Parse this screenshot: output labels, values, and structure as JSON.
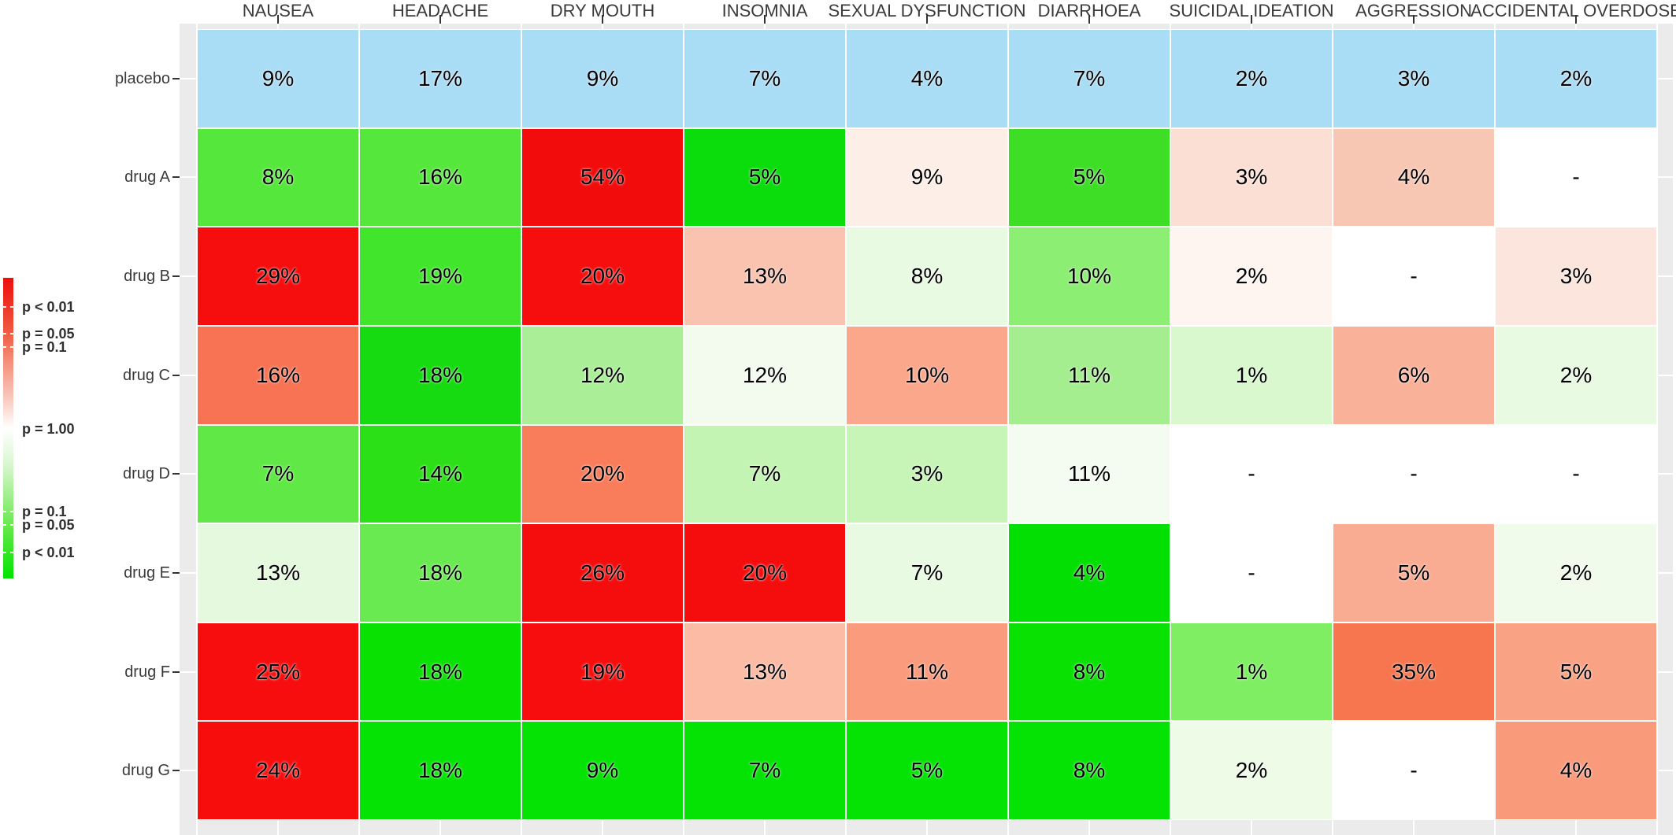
{
  "figure": {
    "background": "#FFFFFF",
    "panel_background": "#EBEBEB",
    "gridline_color": "#FFFFFF",
    "tick_color": "#333333",
    "label_color": "#3A3A3A",
    "value_color": "#000000",
    "placebo_row_color": "#A9DCF5"
  },
  "chart_data": {
    "type": "heatmap",
    "title": "",
    "xlabel": "",
    "ylabel": "",
    "grid": true,
    "legend_position": "left",
    "columns": [
      "NAUSEA",
      "HEADACHE",
      "DRY MOUTH",
      "INSOMNIA",
      "SEXUAL DYSFUNCTION",
      "DIARRHOEA",
      "SUICIDAL IDEATION",
      "AGGRESSION",
      "ACCIDENTAL OVERDOSE"
    ],
    "rows": [
      "placebo",
      "drug A",
      "drug B",
      "drug C",
      "drug D",
      "drug E",
      "drug F",
      "drug G"
    ],
    "cells": [
      [
        {
          "v": "9%",
          "c": "#A9DCF5"
        },
        {
          "v": "17%",
          "c": "#A9DCF5"
        },
        {
          "v": "9%",
          "c": "#A9DCF5"
        },
        {
          "v": "7%",
          "c": "#A9DCF5"
        },
        {
          "v": "4%",
          "c": "#A9DCF5"
        },
        {
          "v": "7%",
          "c": "#A9DCF5"
        },
        {
          "v": "2%",
          "c": "#A9DCF5"
        },
        {
          "v": "3%",
          "c": "#A9DCF5"
        },
        {
          "v": "2%",
          "c": "#A9DCF5"
        }
      ],
      [
        {
          "v": "8%",
          "c": "#55E73B"
        },
        {
          "v": "16%",
          "c": "#55E73B"
        },
        {
          "v": "54%",
          "c": "#F30C0C"
        },
        {
          "v": "5%",
          "c": "#0BDC0B"
        },
        {
          "v": "9%",
          "c": "#FDEFE8"
        },
        {
          "v": "5%",
          "c": "#3EDE27"
        },
        {
          "v": "3%",
          "c": "#FCDFD4"
        },
        {
          "v": "4%",
          "c": "#F8C7B3"
        },
        {
          "v": "-",
          "c": "#FFFFFF"
        }
      ],
      [
        {
          "v": "29%",
          "c": "#F60D0D"
        },
        {
          "v": "19%",
          "c": "#41E52B"
        },
        {
          "v": "20%",
          "c": "#F60D0D"
        },
        {
          "v": "13%",
          "c": "#F9C3AF"
        },
        {
          "v": "8%",
          "c": "#E9FAE2"
        },
        {
          "v": "10%",
          "c": "#8DEE74"
        },
        {
          "v": "2%",
          "c": "#FEF5F0"
        },
        {
          "v": "-",
          "c": "#FFFFFF"
        },
        {
          "v": "3%",
          "c": "#FCE5DC"
        }
      ],
      [
        {
          "v": "16%",
          "c": "#F77354"
        },
        {
          "v": "18%",
          "c": "#15DB10"
        },
        {
          "v": "12%",
          "c": "#AAEF97"
        },
        {
          "v": "12%",
          "c": "#F3FBEF"
        },
        {
          "v": "10%",
          "c": "#FAA78B"
        },
        {
          "v": "11%",
          "c": "#A5EE90"
        },
        {
          "v": "1%",
          "c": "#D9F8CD"
        },
        {
          "v": "6%",
          "c": "#FAB199"
        },
        {
          "v": "2%",
          "c": "#E9FAE2"
        }
      ],
      [
        {
          "v": "7%",
          "c": "#60E846"
        },
        {
          "v": "14%",
          "c": "#2BE017"
        },
        {
          "v": "20%",
          "c": "#F97C5B"
        },
        {
          "v": "7%",
          "c": "#C3F4B3"
        },
        {
          "v": "3%",
          "c": "#C7F5B8"
        },
        {
          "v": "11%",
          "c": "#F4FCF1"
        },
        {
          "v": "-",
          "c": "#FFFFFF"
        },
        {
          "v": "-",
          "c": "#FFFFFF"
        },
        {
          "v": "-",
          "c": "#FFFFFF"
        }
      ],
      [
        {
          "v": "13%",
          "c": "#E5F9DE"
        },
        {
          "v": "18%",
          "c": "#69EA50"
        },
        {
          "v": "26%",
          "c": "#F50C0C"
        },
        {
          "v": "20%",
          "c": "#F50C0C"
        },
        {
          "v": "7%",
          "c": "#E9FAE3"
        },
        {
          "v": "4%",
          "c": "#03DF03"
        },
        {
          "v": "-",
          "c": "#FFFFFF"
        },
        {
          "v": "5%",
          "c": "#FAAC92"
        },
        {
          "v": "2%",
          "c": "#F0FBEC"
        }
      ],
      [
        {
          "v": "25%",
          "c": "#F70D0D"
        },
        {
          "v": "18%",
          "c": "#09E103"
        },
        {
          "v": "19%",
          "c": "#F70D0D"
        },
        {
          "v": "13%",
          "c": "#FBBBA5"
        },
        {
          "v": "11%",
          "c": "#FA9B7E"
        },
        {
          "v": "8%",
          "c": "#09E103"
        },
        {
          "v": "1%",
          "c": "#7FEE63"
        },
        {
          "v": "35%",
          "c": "#F7764F"
        },
        {
          "v": "5%",
          "c": "#FAA284"
        }
      ],
      [
        {
          "v": "24%",
          "c": "#F80D0D"
        },
        {
          "v": "18%",
          "c": "#04E304"
        },
        {
          "v": "9%",
          "c": "#04E304"
        },
        {
          "v": "7%",
          "c": "#04E304"
        },
        {
          "v": "5%",
          "c": "#04E304"
        },
        {
          "v": "8%",
          "c": "#04E304"
        },
        {
          "v": "2%",
          "c": "#EDFBE7"
        },
        {
          "v": "-",
          "c": "#FFFFFF"
        },
        {
          "v": "4%",
          "c": "#F99A7B"
        }
      ]
    ],
    "legend": {
      "gradient_colors": [
        "#EE0D0D",
        "#F05A40",
        "#F4907B",
        "#F9C8BD",
        "#FFFFFF",
        "#D9F7D0",
        "#A3F090",
        "#5FE845",
        "#00E400"
      ],
      "gradient_stops": [
        0,
        0.18,
        0.28,
        0.4,
        0.5,
        0.62,
        0.72,
        0.84,
        1
      ],
      "labels": [
        {
          "text": "p < 0.01",
          "pos": 0.097
        },
        {
          "text": "p = 0.05",
          "pos": 0.186
        },
        {
          "text": "p = 0.1",
          "pos": 0.23
        },
        {
          "text": "p = 1.00",
          "pos": 0.502
        },
        {
          "text": "p = 0.1",
          "pos": 0.777
        },
        {
          "text": "p = 0.05",
          "pos": 0.822
        },
        {
          "text": "p < 0.01",
          "pos": 0.913
        }
      ]
    }
  }
}
